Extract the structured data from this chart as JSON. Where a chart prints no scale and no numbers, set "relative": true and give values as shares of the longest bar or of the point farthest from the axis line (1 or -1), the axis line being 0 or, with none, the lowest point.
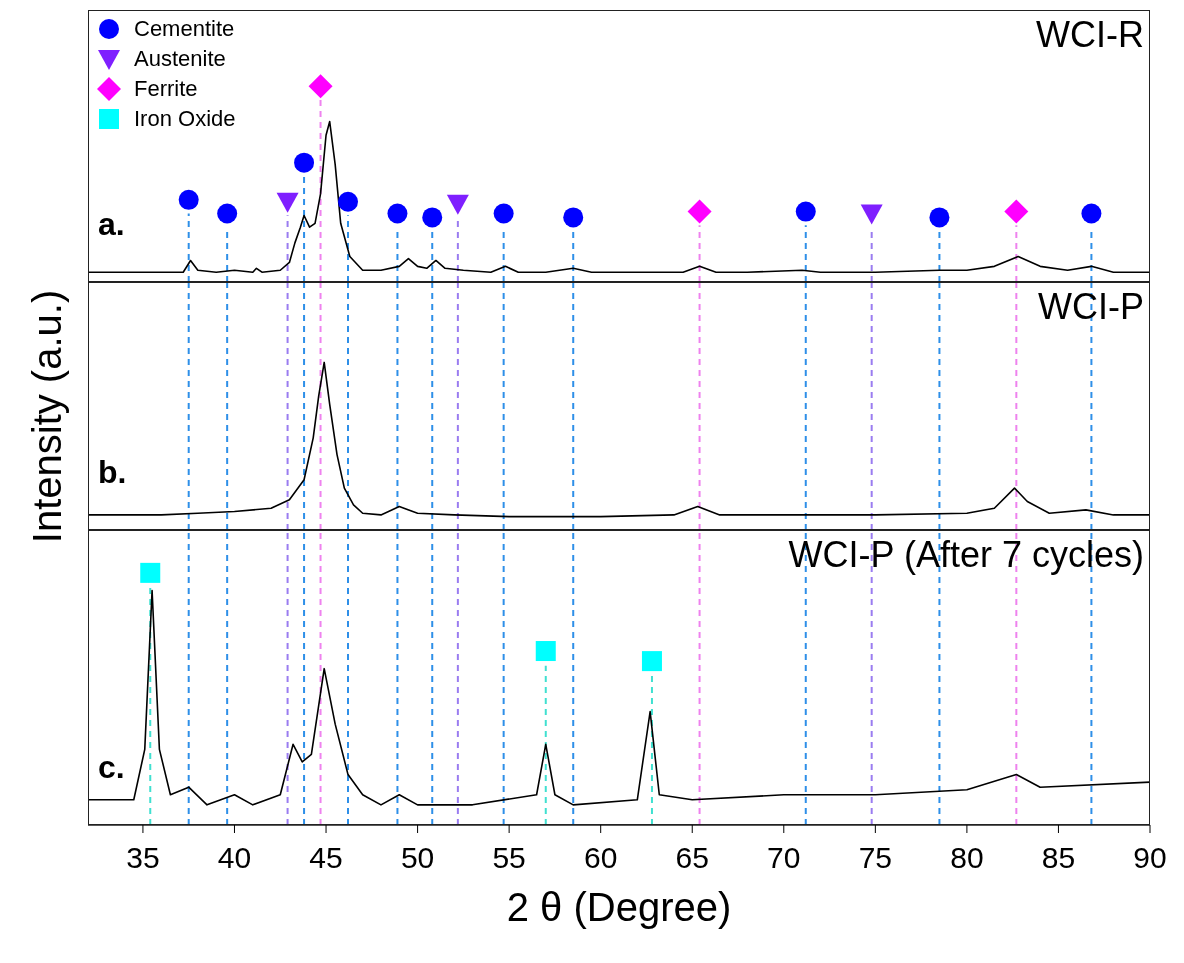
{
  "chart_data": [
    {
      "type": "line",
      "relative": true,
      "xlim": [
        32,
        90
      ],
      "tick_labels": false,
      "legend": "top left",
      "annotations": [
        "a.",
        "WCI-R"
      ],
      "series": [
        {
          "color": "#000000",
          "marker": "none",
          "x": [
            32,
            34,
            36,
            37.2,
            37.6,
            38,
            39,
            40,
            41,
            41.2,
            41.5,
            42.5,
            43,
            43.3,
            43.6,
            43.8,
            44.1,
            44.4,
            44.7,
            45,
            45.2,
            45.5,
            45.8,
            46.3,
            47,
            48,
            49,
            49.5,
            50,
            50.5,
            51,
            51.5,
            52.5,
            54,
            54.8,
            55.5,
            57,
            58.5,
            59.5,
            62,
            64.5,
            65.4,
            66.3,
            68,
            71,
            72,
            75,
            78.5,
            80,
            81.5,
            82.8,
            84,
            85.5,
            86.8,
            88,
            90
          ],
          "values": [
            0.05,
            0.05,
            0.05,
            0.05,
            0.11,
            0.06,
            0.05,
            0.06,
            0.05,
            0.07,
            0.05,
            0.06,
            0.1,
            0.2,
            0.28,
            0.34,
            0.28,
            0.3,
            0.45,
            0.75,
            0.82,
            0.6,
            0.3,
            0.13,
            0.06,
            0.06,
            0.08,
            0.12,
            0.08,
            0.07,
            0.11,
            0.07,
            0.06,
            0.05,
            0.08,
            0.05,
            0.05,
            0.07,
            0.05,
            0.05,
            0.05,
            0.08,
            0.05,
            0.05,
            0.06,
            0.05,
            0.05,
            0.06,
            0.06,
            0.08,
            0.13,
            0.08,
            0.06,
            0.08,
            0.05,
            0.05
          ]
        },
        {
          "type": "scatter",
          "name": "Cementite",
          "color": "#0000ff",
          "marker": "circle",
          "x": [
            37.5,
            39.6,
            43.8,
            46.2,
            48.9,
            50.8,
            54.7,
            58.5,
            71.2,
            78.5,
            86.8
          ],
          "values": [
            0.42,
            0.35,
            0.61,
            0.41,
            0.35,
            0.33,
            0.35,
            0.33,
            0.36,
            0.33,
            0.35
          ]
        },
        {
          "type": "scatter",
          "name": "Austenite",
          "color": "#7f1fff",
          "marker": "triangle",
          "x": [
            42.9,
            52.2,
            74.8
          ],
          "values": [
            0.41,
            0.4,
            0.35
          ]
        },
        {
          "type": "scatter",
          "name": "Ferrite",
          "color": "#ff00ff",
          "marker": "diamond",
          "x": [
            44.7,
            65.4,
            82.7
          ],
          "values": [
            1,
            0.36,
            0.36
          ]
        },
        {
          "type": "scatter",
          "name": "Iron Oxide",
          "color": "#00ffff",
          "marker": "square"
        }
      ],
      "ref_lines": [
        {
          "axis": "x",
          "value": 37.5,
          "color": "#2e8fe8",
          "line_style": "dashed"
        },
        {
          "axis": "x",
          "value": 39.6,
          "color": "#2e8fe8",
          "line_style": "dashed"
        },
        {
          "axis": "x",
          "value": 43.8,
          "color": "#2e8fe8",
          "line_style": "dashed"
        },
        {
          "axis": "x",
          "value": 46.2,
          "color": "#2e8fe8",
          "line_style": "dashed"
        },
        {
          "axis": "x",
          "value": 48.9,
          "color": "#2e8fe8",
          "line_style": "dashed"
        },
        {
          "axis": "x",
          "value": 50.8,
          "color": "#2e8fe8",
          "line_style": "dashed"
        },
        {
          "axis": "x",
          "value": 54.7,
          "color": "#2e8fe8",
          "line_style": "dashed"
        },
        {
          "axis": "x",
          "value": 58.5,
          "color": "#2e8fe8",
          "line_style": "dashed"
        },
        {
          "axis": "x",
          "value": 71.2,
          "color": "#2e8fe8",
          "line_style": "dashed"
        },
        {
          "axis": "x",
          "value": 78.5,
          "color": "#2e8fe8",
          "line_style": "dashed"
        },
        {
          "axis": "x",
          "value": 86.8,
          "color": "#2e8fe8",
          "line_style": "dashed"
        },
        {
          "axis": "x",
          "value": 42.9,
          "color": "#9a7cf0",
          "line_style": "dashed"
        },
        {
          "axis": "x",
          "value": 52.2,
          "color": "#9a7cf0",
          "line_style": "dashed"
        },
        {
          "axis": "x",
          "value": 74.8,
          "color": "#9a7cf0",
          "line_style": "dashed"
        },
        {
          "axis": "x",
          "value": 44.7,
          "color": "#ee82ee",
          "line_style": "dashed"
        },
        {
          "axis": "x",
          "value": 65.4,
          "color": "#ee82ee",
          "line_style": "dashed"
        },
        {
          "axis": "x",
          "value": 82.7,
          "color": "#ee82ee",
          "line_style": "dashed"
        }
      ]
    },
    {
      "type": "line",
      "relative": true,
      "xlim": [
        32,
        90
      ],
      "tick_labels": false,
      "annotations": [
        "b.",
        "WCI-P"
      ],
      "ylabel": "Intensity (a.u.)",
      "series": [
        {
          "color": "#000000",
          "marker": "none",
          "x": [
            32,
            34,
            36,
            38,
            40,
            42,
            43,
            43.8,
            44.3,
            44.6,
            44.9,
            45.2,
            45.6,
            46,
            46.5,
            47,
            48,
            49,
            50,
            52,
            55,
            60,
            64,
            65.3,
            66.5,
            70,
            75,
            80,
            81.5,
            82.6,
            83.3,
            84.5,
            86.5,
            88,
            90
          ],
          "values": [
            0.09,
            0.09,
            0.09,
            0.1,
            0.11,
            0.13,
            0.18,
            0.3,
            0.55,
            0.8,
            1,
            0.75,
            0.45,
            0.25,
            0.15,
            0.1,
            0.09,
            0.14,
            0.1,
            0.09,
            0.08,
            0.08,
            0.09,
            0.14,
            0.09,
            0.09,
            0.09,
            0.1,
            0.13,
            0.25,
            0.17,
            0.1,
            0.12,
            0.09,
            0.09
          ]
        }
      ],
      "ref_lines": [
        {
          "axis": "x",
          "value": 37.5,
          "color": "#2e8fe8",
          "line_style": "dashed"
        },
        {
          "axis": "x",
          "value": 39.6,
          "color": "#2e8fe8",
          "line_style": "dashed"
        },
        {
          "axis": "x",
          "value": 43.8,
          "color": "#2e8fe8",
          "line_style": "dashed"
        },
        {
          "axis": "x",
          "value": 46.2,
          "color": "#2e8fe8",
          "line_style": "dashed"
        },
        {
          "axis": "x",
          "value": 48.9,
          "color": "#2e8fe8",
          "line_style": "dashed"
        },
        {
          "axis": "x",
          "value": 50.8,
          "color": "#2e8fe8",
          "line_style": "dashed"
        },
        {
          "axis": "x",
          "value": 54.7,
          "color": "#2e8fe8",
          "line_style": "dashed"
        },
        {
          "axis": "x",
          "value": 58.5,
          "color": "#2e8fe8",
          "line_style": "dashed"
        },
        {
          "axis": "x",
          "value": 71.2,
          "color": "#2e8fe8",
          "line_style": "dashed"
        },
        {
          "axis": "x",
          "value": 78.5,
          "color": "#2e8fe8",
          "line_style": "dashed"
        },
        {
          "axis": "x",
          "value": 86.8,
          "color": "#2e8fe8",
          "line_style": "dashed"
        },
        {
          "axis": "x",
          "value": 42.9,
          "color": "#9a7cf0",
          "line_style": "dashed"
        },
        {
          "axis": "x",
          "value": 52.2,
          "color": "#9a7cf0",
          "line_style": "dashed"
        },
        {
          "axis": "x",
          "value": 74.8,
          "color": "#9a7cf0",
          "line_style": "dashed"
        },
        {
          "axis": "x",
          "value": 44.7,
          "color": "#ee82ee",
          "line_style": "dashed"
        },
        {
          "axis": "x",
          "value": 65.4,
          "color": "#ee82ee",
          "line_style": "dashed"
        },
        {
          "axis": "x",
          "value": 82.7,
          "color": "#ee82ee",
          "line_style": "dashed"
        }
      ]
    },
    {
      "type": "line",
      "relative": true,
      "xlim": [
        32,
        90
      ],
      "xticks": [
        35,
        40,
        45,
        50,
        55,
        60,
        65,
        70,
        75,
        80,
        85,
        90
      ],
      "tick_labels": "x",
      "xlabel": "2 θ (Degree)",
      "annotations": [
        "c.",
        "WCI-P (After 7 cycles)"
      ],
      "series": [
        {
          "color": "#000000",
          "marker": "none",
          "x": [
            32,
            34.5,
            35.1,
            35.5,
            35.9,
            36.5,
            37.5,
            38.5,
            40,
            41,
            42.5,
            43.2,
            43.7,
            44.2,
            44.9,
            45.5,
            46.2,
            47,
            48,
            49,
            50,
            53,
            56.5,
            57,
            57.5,
            58.5,
            62,
            62.7,
            63.2,
            65,
            70,
            75,
            80,
            82.7,
            84,
            90
          ],
          "values": [
            0.1,
            0.1,
            0.3,
            0.93,
            0.3,
            0.12,
            0.15,
            0.08,
            0.12,
            0.08,
            0.12,
            0.32,
            0.25,
            0.28,
            0.62,
            0.4,
            0.2,
            0.12,
            0.08,
            0.12,
            0.08,
            0.08,
            0.12,
            0.32,
            0.12,
            0.08,
            0.1,
            0.45,
            0.12,
            0.1,
            0.12,
            0.12,
            0.14,
            0.2,
            0.15,
            0.17
          ]
        },
        {
          "type": "scatter",
          "color": "#00ffff",
          "marker": "square",
          "x": [
            35.4,
            57,
            62.8
          ],
          "values": [
            1,
            0.69,
            0.65
          ]
        }
      ],
      "ref_lines": [
        {
          "axis": "x",
          "value": 35.4,
          "color": "#40e0d0",
          "line_style": "dashed"
        },
        {
          "axis": "x",
          "value": 57,
          "color": "#40e0d0",
          "line_style": "dashed"
        },
        {
          "axis": "x",
          "value": 62.8,
          "color": "#40e0d0",
          "line_style": "dashed"
        },
        {
          "axis": "x",
          "value": 37.5,
          "color": "#2e8fe8",
          "line_style": "dashed"
        },
        {
          "axis": "x",
          "value": 39.6,
          "color": "#2e8fe8",
          "line_style": "dashed"
        },
        {
          "axis": "x",
          "value": 43.8,
          "color": "#2e8fe8",
          "line_style": "dashed"
        },
        {
          "axis": "x",
          "value": 46.2,
          "color": "#2e8fe8",
          "line_style": "dashed"
        },
        {
          "axis": "x",
          "value": 48.9,
          "color": "#2e8fe8",
          "line_style": "dashed"
        },
        {
          "axis": "x",
          "value": 50.8,
          "color": "#2e8fe8",
          "line_style": "dashed"
        },
        {
          "axis": "x",
          "value": 54.7,
          "color": "#2e8fe8",
          "line_style": "dashed"
        },
        {
          "axis": "x",
          "value": 58.5,
          "color": "#2e8fe8",
          "line_style": "dashed"
        },
        {
          "axis": "x",
          "value": 71.2,
          "color": "#2e8fe8",
          "line_style": "dashed"
        },
        {
          "axis": "x",
          "value": 78.5,
          "color": "#2e8fe8",
          "line_style": "dashed"
        },
        {
          "axis": "x",
          "value": 86.8,
          "color": "#2e8fe8",
          "line_style": "dashed"
        },
        {
          "axis": "x",
          "value": 42.9,
          "color": "#9a7cf0",
          "line_style": "dashed"
        },
        {
          "axis": "x",
          "value": 52.2,
          "color": "#9a7cf0",
          "line_style": "dashed"
        },
        {
          "axis": "x",
          "value": 74.8,
          "color": "#9a7cf0",
          "line_style": "dashed"
        },
        {
          "axis": "x",
          "value": 44.7,
          "color": "#ee82ee",
          "line_style": "dashed"
        },
        {
          "axis": "x",
          "value": 65.4,
          "color": "#ee82ee",
          "line_style": "dashed"
        },
        {
          "axis": "x",
          "value": 82.7,
          "color": "#ee82ee",
          "line_style": "dashed"
        }
      ]
    }
  ]
}
